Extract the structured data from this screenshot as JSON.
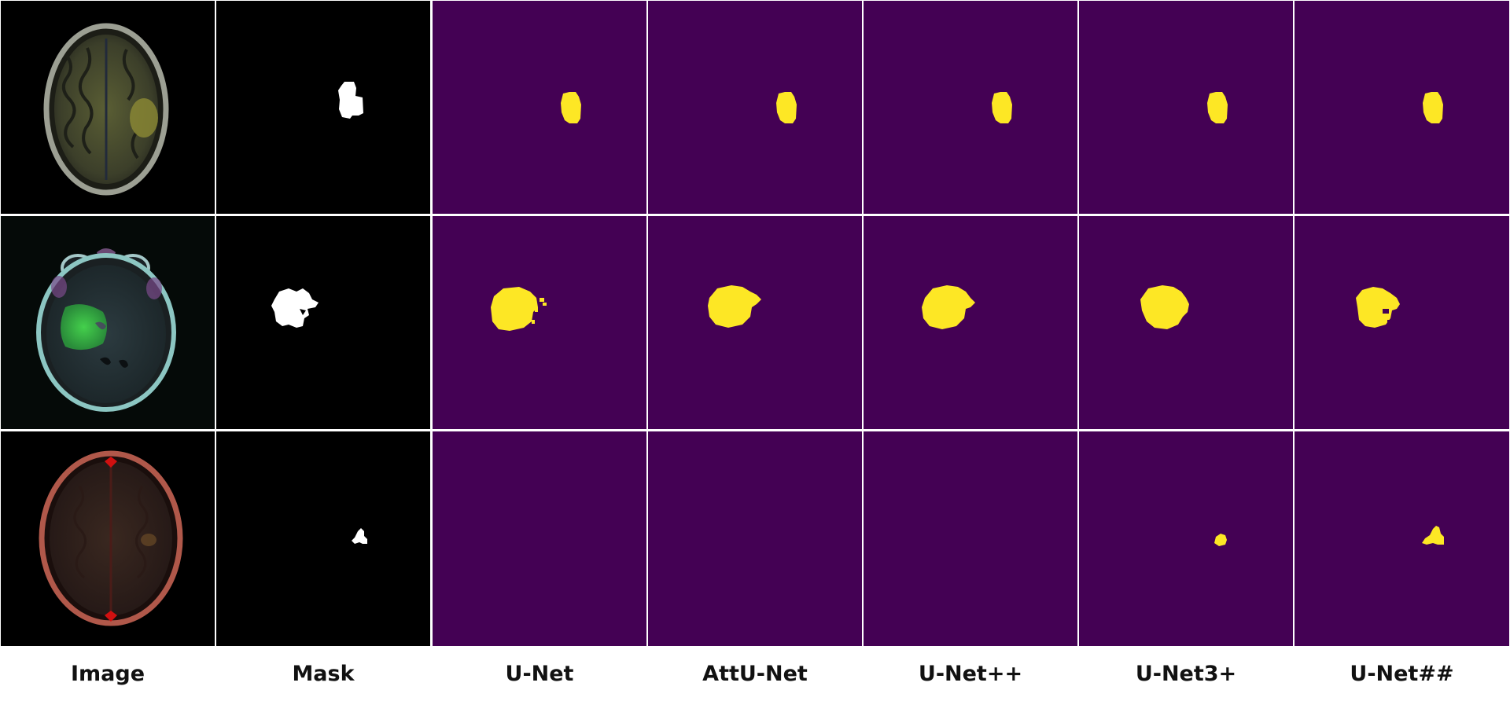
{
  "columns": [
    "Image",
    "Mask",
    "U-Net",
    "AttU-Net",
    "U-Net++",
    "U-Net3+",
    "U-Net##"
  ],
  "colors": {
    "prediction_background": "#440154",
    "prediction_foreground": "#fde725",
    "mask_background": "#000000",
    "mask_foreground": "#ffffff",
    "divider": "#ffffff"
  },
  "rows": [
    {
      "image": "axial-mri-tumor-right-frontal",
      "mask": "present",
      "predictions": [
        "present",
        "present",
        "present",
        "present",
        "present"
      ]
    },
    {
      "image": "axial-mri-tumor-left-temporal",
      "mask": "present",
      "predictions": [
        "present",
        "present",
        "present",
        "present",
        "present"
      ]
    },
    {
      "image": "axial-mri-small-tumor-right",
      "mask": "present",
      "predictions": [
        "absent",
        "absent",
        "absent",
        "present",
        "present"
      ]
    }
  ]
}
